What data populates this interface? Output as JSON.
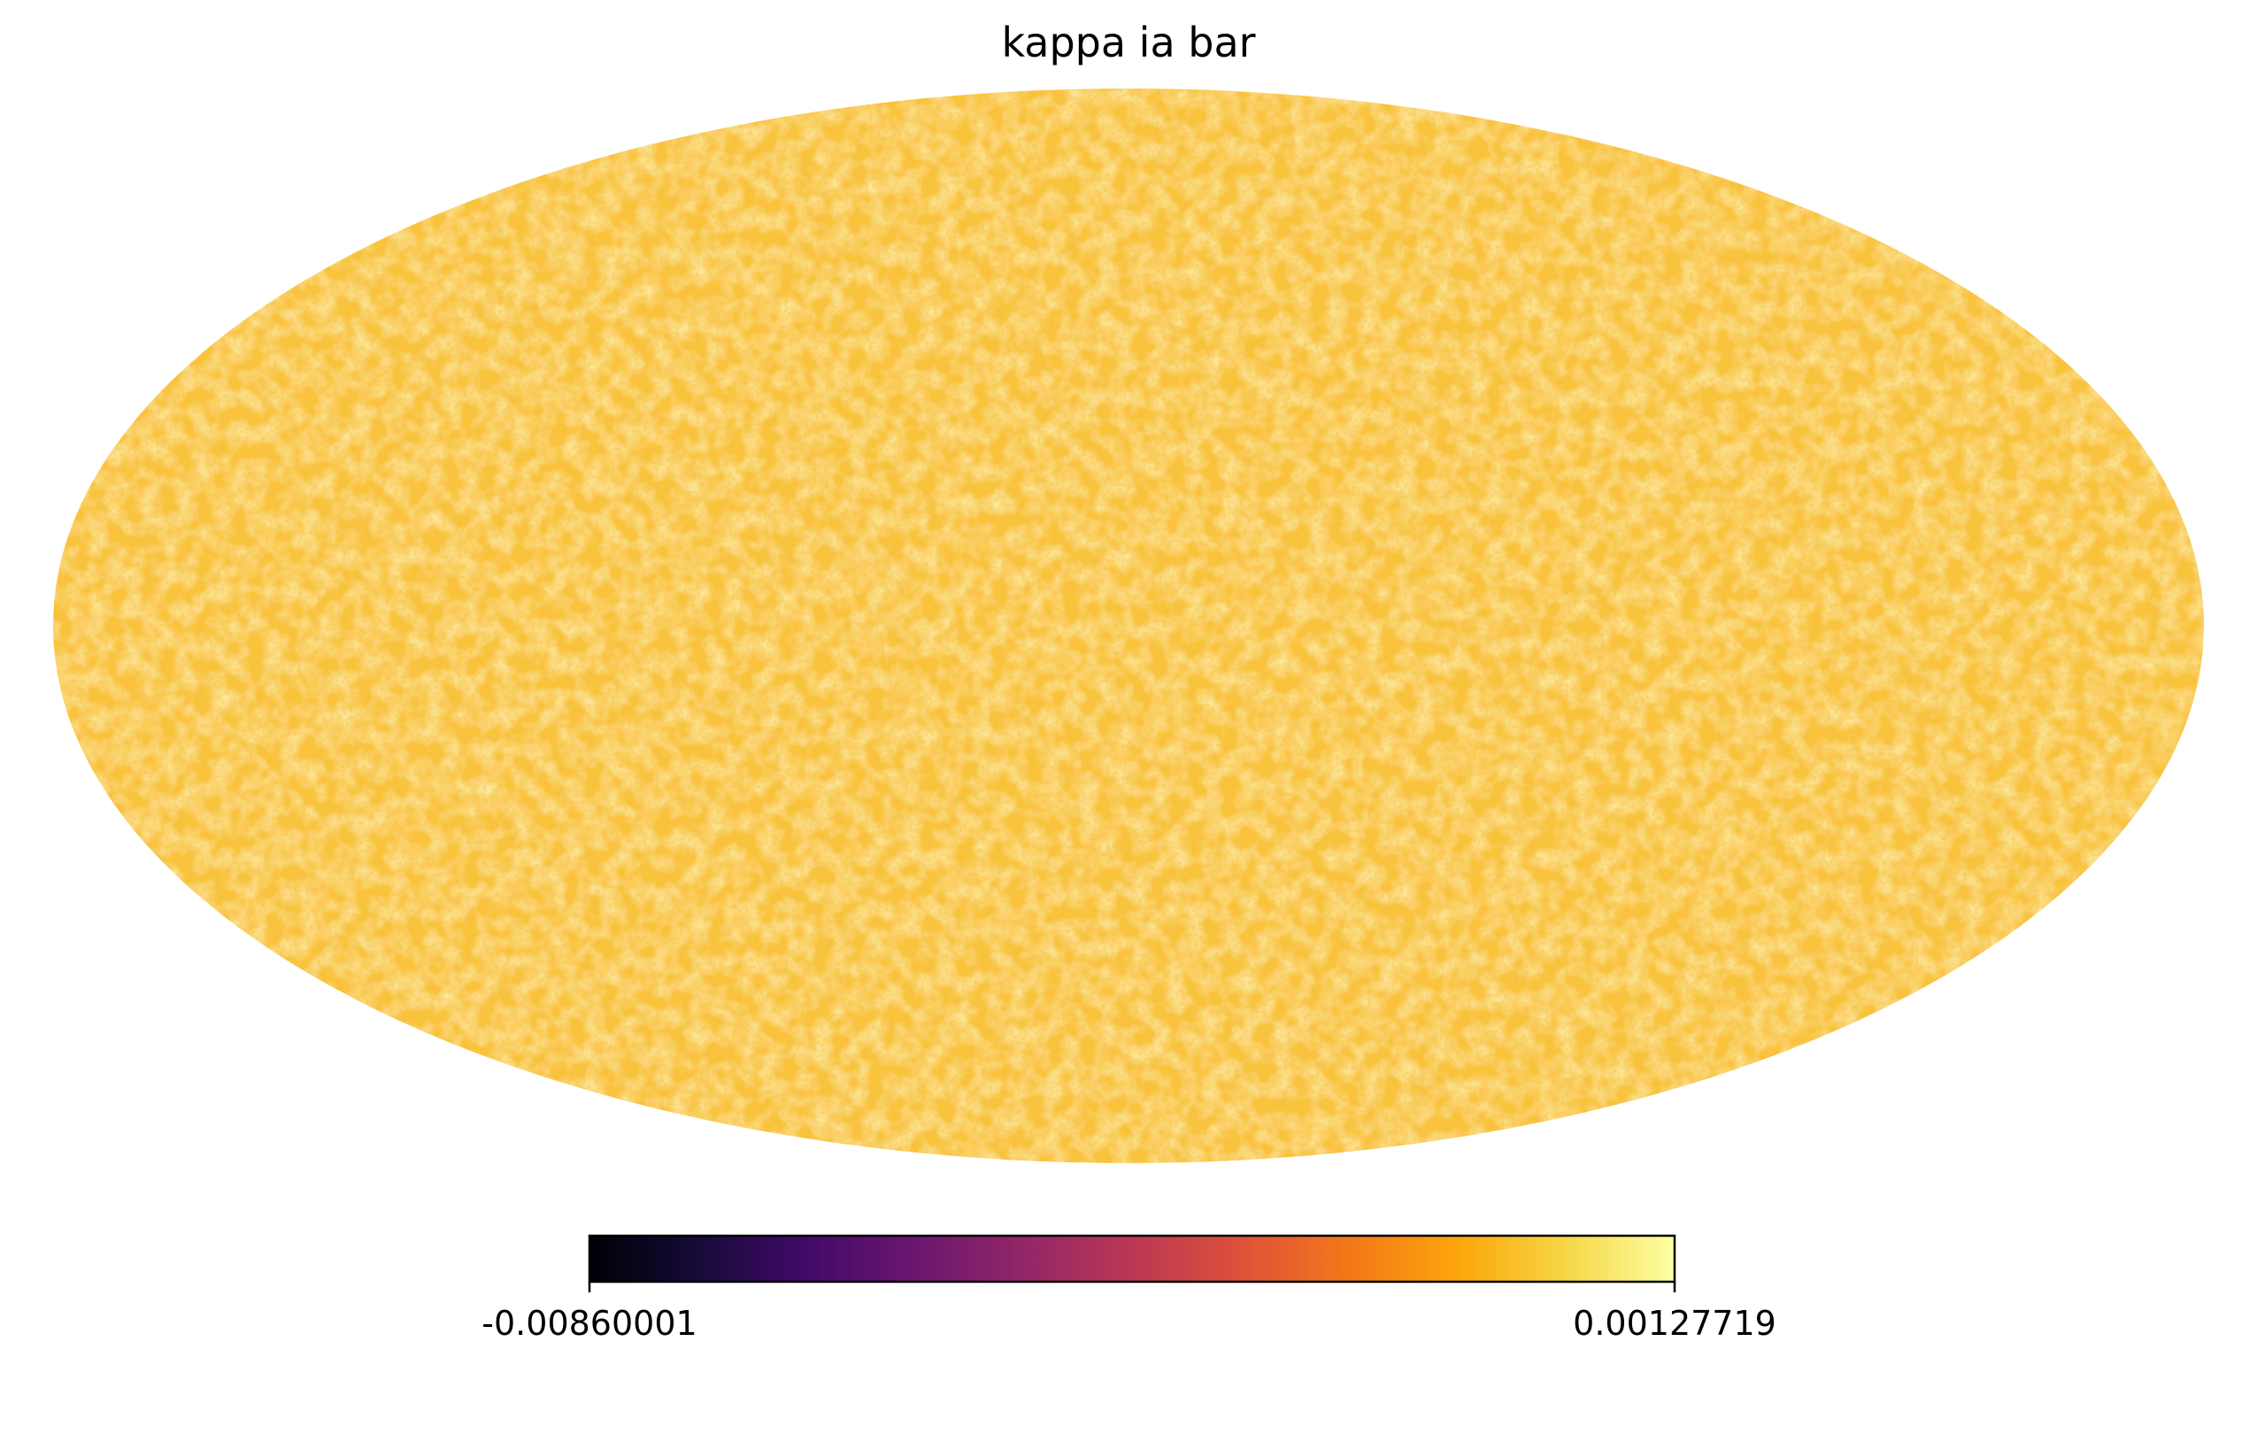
{
  "chart_data": {
    "type": "heatmap",
    "projection": "mollweide",
    "title": "kappa ia bar",
    "colormap": "inferno",
    "colorbar": {
      "min": -0.00860001,
      "max": 0.00127719,
      "min_label": "-0.00860001",
      "max_label": "0.00127719",
      "orientation": "horizontal",
      "placement": "bottom"
    },
    "colors": {
      "background": "#ffffff",
      "dominant_fill": "#f9c23c"
    },
    "grid": false
  }
}
